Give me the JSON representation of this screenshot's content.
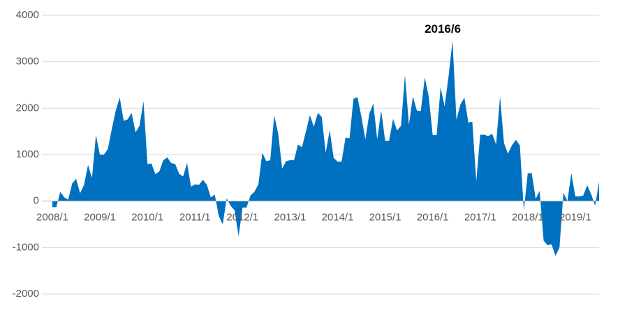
{
  "chart_data": {
    "type": "area",
    "color": "#0070c0",
    "grid": true,
    "annotation": "2016/6",
    "ylim": [
      -2000,
      4000
    ],
    "yticks": [
      -2000,
      -1000,
      0,
      1000,
      2000,
      3000,
      4000
    ],
    "categories": [
      "2008/1",
      null,
      null,
      null,
      null,
      null,
      null,
      null,
      null,
      null,
      null,
      null,
      "2009/1",
      null,
      null,
      null,
      null,
      null,
      null,
      null,
      null,
      null,
      null,
      null,
      "2010/1",
      null,
      null,
      null,
      null,
      null,
      null,
      null,
      null,
      null,
      null,
      null,
      "2011/1",
      null,
      null,
      null,
      null,
      null,
      null,
      null,
      null,
      null,
      null,
      null,
      "2012/1",
      null,
      null,
      null,
      null,
      null,
      null,
      null,
      null,
      null,
      null,
      null,
      "2013/1",
      null,
      null,
      null,
      null,
      null,
      null,
      null,
      null,
      null,
      null,
      null,
      "2014/1",
      null,
      null,
      null,
      null,
      null,
      null,
      null,
      null,
      null,
      null,
      null,
      "2015/1",
      null,
      null,
      null,
      null,
      null,
      null,
      null,
      null,
      null,
      null,
      null,
      "2016/1",
      null,
      null,
      null,
      null,
      null,
      null,
      null,
      null,
      null,
      null,
      null,
      "2017/1",
      null,
      null,
      null,
      null,
      null,
      null,
      null,
      null,
      null,
      null,
      null,
      "2018/1",
      null,
      null,
      null,
      null,
      null,
      null,
      null,
      null,
      null,
      null,
      null,
      "2019/1",
      null,
      null,
      null,
      null,
      null,
      null
    ],
    "values": [
      -130,
      -130,
      200,
      80,
      30,
      380,
      480,
      170,
      350,
      780,
      500,
      1420,
      1000,
      1000,
      1120,
      1550,
      1950,
      2230,
      1730,
      1760,
      1900,
      1480,
      1620,
      2150,
      800,
      810,
      580,
      640,
      880,
      940,
      820,
      800,
      590,
      530,
      820,
      310,
      360,
      350,
      460,
      350,
      80,
      140,
      -320,
      -500,
      60,
      -100,
      -200,
      -760,
      -140,
      -140,
      120,
      200,
      360,
      1040,
      860,
      880,
      1850,
      1450,
      700,
      860,
      880,
      880,
      1220,
      1160,
      1500,
      1850,
      1600,
      1900,
      1810,
      1040,
      1530,
      930,
      850,
      850,
      1370,
      1350,
      2200,
      2240,
      1820,
      1330,
      1880,
      2100,
      1330,
      1950,
      1300,
      1300,
      1770,
      1520,
      1620,
      2720,
      1640,
      2250,
      1950,
      1940,
      2660,
      2250,
      1420,
      1420,
      2450,
      2040,
      2680,
      3450,
      1750,
      2080,
      2230,
      1690,
      1710,
      430,
      1430,
      1430,
      1400,
      1450,
      1220,
      2250,
      1250,
      1020,
      1200,
      1320,
      1200,
      -200,
      600,
      600,
      50,
      220,
      -850,
      -950,
      -930,
      -1180,
      -1000,
      180,
      0,
      600,
      100,
      100,
      120,
      340,
      150,
      -100,
      420
    ]
  }
}
